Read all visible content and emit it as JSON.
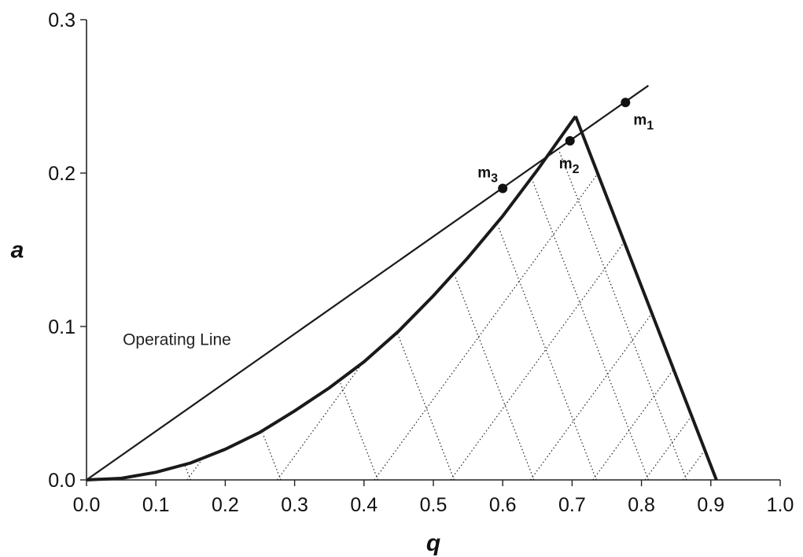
{
  "chart_data": {
    "type": "line",
    "title": "",
    "xlabel": "q",
    "ylabel": "a",
    "xlim": [
      0.0,
      1.0
    ],
    "ylim": [
      0.0,
      0.3
    ],
    "x_ticks": [
      "0.0",
      "0.1",
      "0.2",
      "0.3",
      "0.4",
      "0.5",
      "0.6",
      "0.7",
      "0.8",
      "0.9",
      "1.0"
    ],
    "y_ticks": [
      "0.0",
      "0.1",
      "0.2",
      "0.3"
    ],
    "grid": false,
    "series": [
      {
        "name": "Operating Line",
        "style": "solid-thin",
        "points": [
          [
            0.0,
            0.0
          ],
          [
            0.81,
            0.257
          ]
        ]
      },
      {
        "style": "solid-thick",
        "points": [
          [
            0.0,
            0.0
          ],
          [
            0.05,
            0.001
          ],
          [
            0.1,
            0.005
          ],
          [
            0.15,
            0.011
          ],
          [
            0.2,
            0.02
          ],
          [
            0.25,
            0.031
          ],
          [
            0.3,
            0.045
          ],
          [
            0.35,
            0.06
          ],
          [
            0.4,
            0.077
          ],
          [
            0.45,
            0.097
          ],
          [
            0.5,
            0.12
          ],
          [
            0.55,
            0.145
          ],
          [
            0.6,
            0.172
          ],
          [
            0.65,
            0.202
          ],
          [
            0.705,
            0.237
          ]
        ]
      },
      {
        "style": "solid-thick",
        "points": [
          [
            0.705,
            0.237
          ],
          [
            0.908,
            0.0
          ]
        ]
      }
    ],
    "points": [
      {
        "label": "m",
        "sub": "1",
        "x": 0.777,
        "y": 0.246
      },
      {
        "label": "m",
        "sub": "2",
        "x": 0.697,
        "y": 0.221
      },
      {
        "label": "m",
        "sub": "3",
        "x": 0.6,
        "y": 0.19
      }
    ],
    "dotted_lattice": {
      "top": [
        0.705,
        0.237
      ],
      "left_family_base_q": [
        0.15,
        0.28,
        0.42,
        0.53,
        0.645,
        0.735,
        0.81,
        0.865
      ],
      "right_family_base_q": [
        0.145,
        0.275,
        0.415,
        0.525,
        0.64,
        0.73,
        0.805,
        0.86
      ]
    },
    "annotations": [
      {
        "text": "Operating Line",
        "x": 0.05,
        "y": 0.085
      }
    ]
  }
}
